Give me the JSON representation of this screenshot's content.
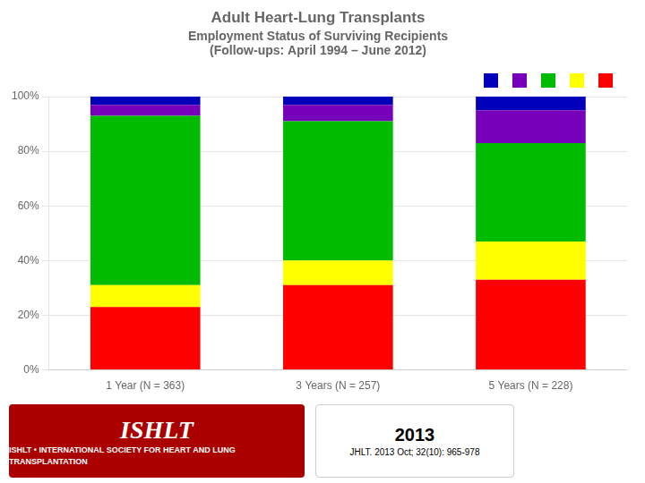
{
  "chart_data": {
    "type": "bar",
    "stacked": true,
    "title": "Adult Heart-Lung Transplants",
    "subtitle": [
      "Employment Status of Surviving Recipients",
      "(Follow-ups: April 1994 – June 2012)"
    ],
    "categories": [
      "1 Year (N = 363)",
      "3 Years (N = 257)",
      "5 Years (N = 228)"
    ],
    "series": [
      {
        "color": "#ff0000",
        "values": [
          23,
          31,
          33
        ]
      },
      {
        "color": "#ffff00",
        "values": [
          8,
          9,
          14
        ]
      },
      {
        "color": "#00bb00",
        "values": [
          62,
          51,
          36
        ]
      },
      {
        "color": "#7700bb",
        "values": [
          4,
          6,
          12
        ]
      },
      {
        "color": "#0000bb",
        "values": [
          3,
          3,
          5
        ]
      }
    ],
    "ylim": [
      0,
      100
    ],
    "yticks": [
      {
        "value": 0,
        "label": "0%"
      },
      {
        "value": 20,
        "label": "20%"
      },
      {
        "value": 40,
        "label": "40%"
      },
      {
        "value": 60,
        "label": "60%"
      },
      {
        "value": 80,
        "label": "80%"
      },
      {
        "value": 100,
        "label": "100%"
      }
    ],
    "grid": true,
    "legend": "upper right",
    "annotations": [
      "ISHLT",
      "ISHLT • INTERNATIONAL SOCIETY FOR HEART AND LUNG TRANSPLANTATION",
      "2013",
      "JHLT. 2013 Oct; 32(10): 965-978"
    ]
  }
}
